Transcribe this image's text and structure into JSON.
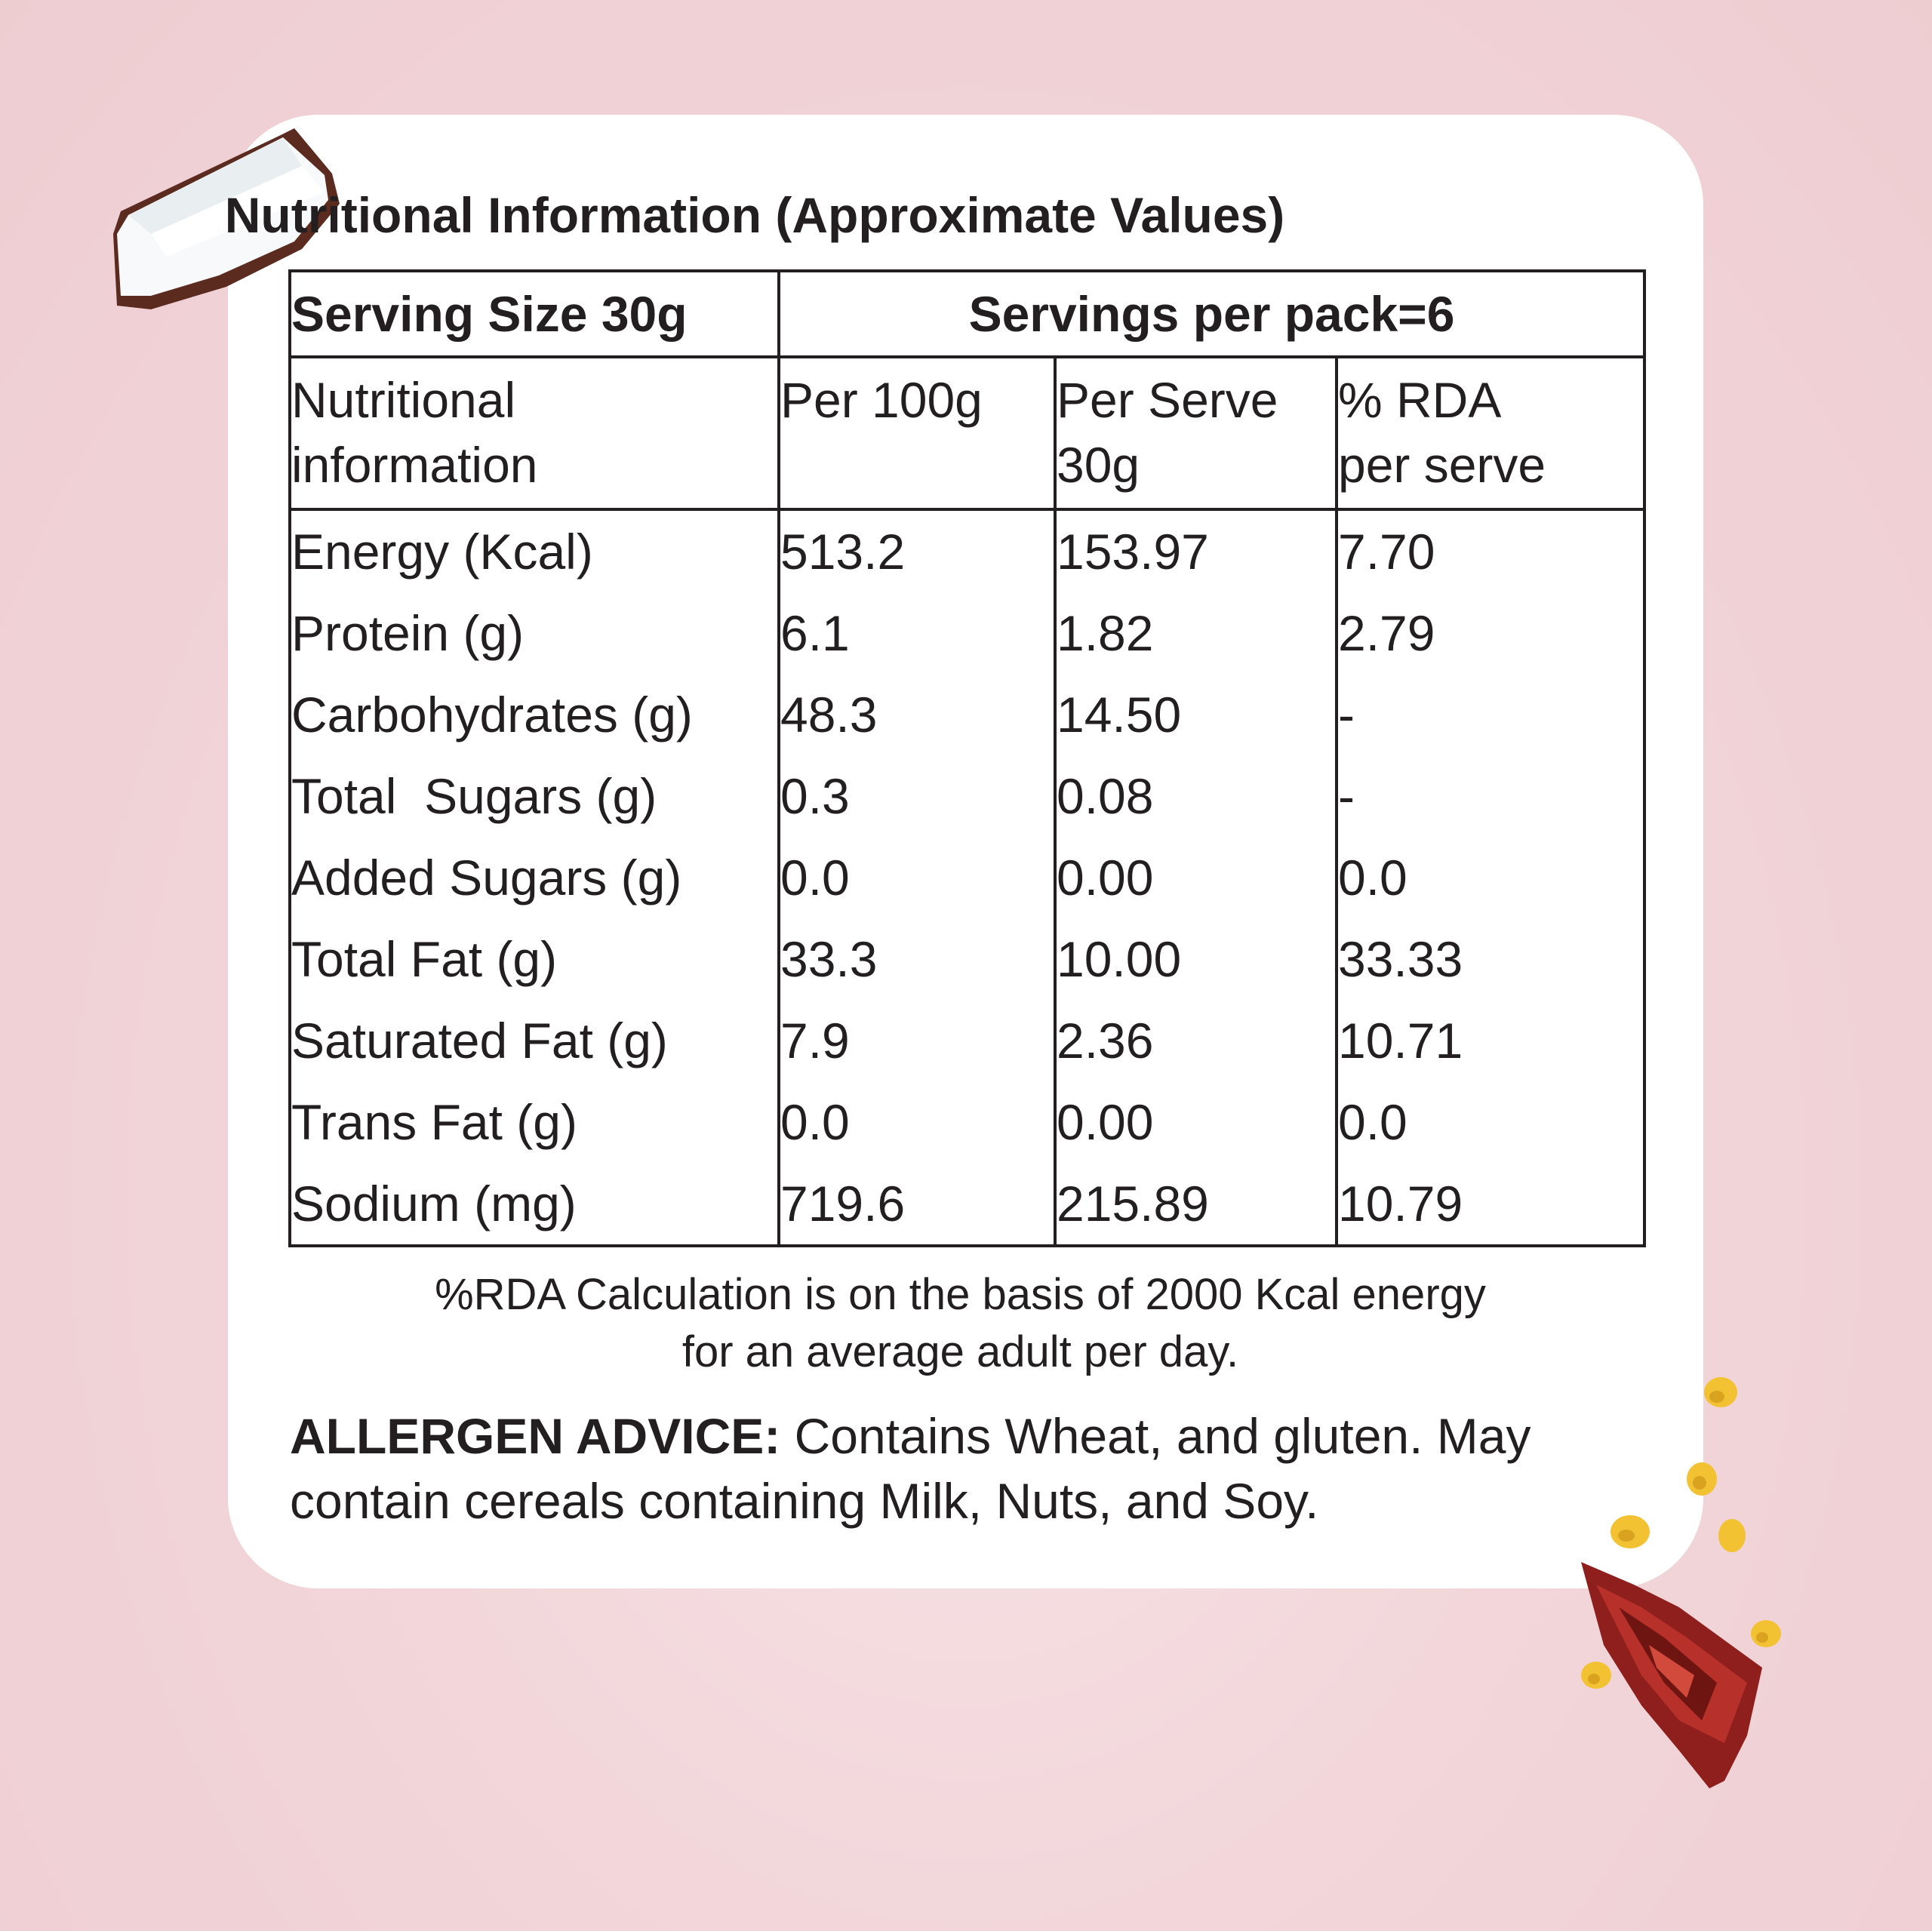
{
  "title": "Nutritional Information (Approximate Values)",
  "header": {
    "serving_size": "Serving Size 30g",
    "servings_per_pack": "Servings per pack=6"
  },
  "columns": {
    "nutrient_line1": "Nutritional",
    "nutrient_line2": "information",
    "per100_line1": "Per 100g",
    "perserve_line1": "Per Serve",
    "perserve_line2": "30g",
    "rda_line1": "% RDA",
    "rda_line2": "per serve"
  },
  "rows": [
    {
      "name": "Energy (Kcal)",
      "per100": "513.2",
      "perserve": "153.97",
      "rda": "7.70"
    },
    {
      "name": "Protein (g)",
      "per100": "6.1",
      "perserve": "1.82",
      "rda": "2.79"
    },
    {
      "name": "Carbohydrates (g)",
      "per100": "48.3",
      "perserve": "14.50",
      "rda": "-"
    },
    {
      "name": "Total  Sugars (g)",
      "per100": "0.3",
      "perserve": "0.08",
      "rda": "-"
    },
    {
      "name": "Added Sugars (g)",
      "per100": "0.0",
      "perserve": "0.00",
      "rda": "0.0"
    },
    {
      "name": "Total Fat (g)",
      "per100": "33.3",
      "perserve": "10.00",
      "rda": "33.33"
    },
    {
      "name": "Saturated Fat (g)",
      "per100": "7.9",
      "perserve": "2.36",
      "rda": "10.71"
    },
    {
      "name": "Trans Fat (g)",
      "per100": "0.0",
      "perserve": "0.00",
      "rda": "0.0"
    },
    {
      "name": "Sodium (mg)",
      "per100": "719.6",
      "perserve": "215.89",
      "rda": "10.79"
    }
  ],
  "rda_note": "%RDA Calculation is on the basis of 2000 Kcal energy\nfor an average adult per day.",
  "allergen": {
    "label": "ALLERGEN ADVICE:",
    "text": " Contains Wheat, and gluten. May contain cereals containing Milk, Nuts, and Soy."
  },
  "colors": {
    "background": "#f2d6da",
    "card": "#ffffff",
    "text": "#231f20"
  },
  "decorations": [
    "coconut-piece-image",
    "dried-chili-image",
    "chickpea-image"
  ]
}
